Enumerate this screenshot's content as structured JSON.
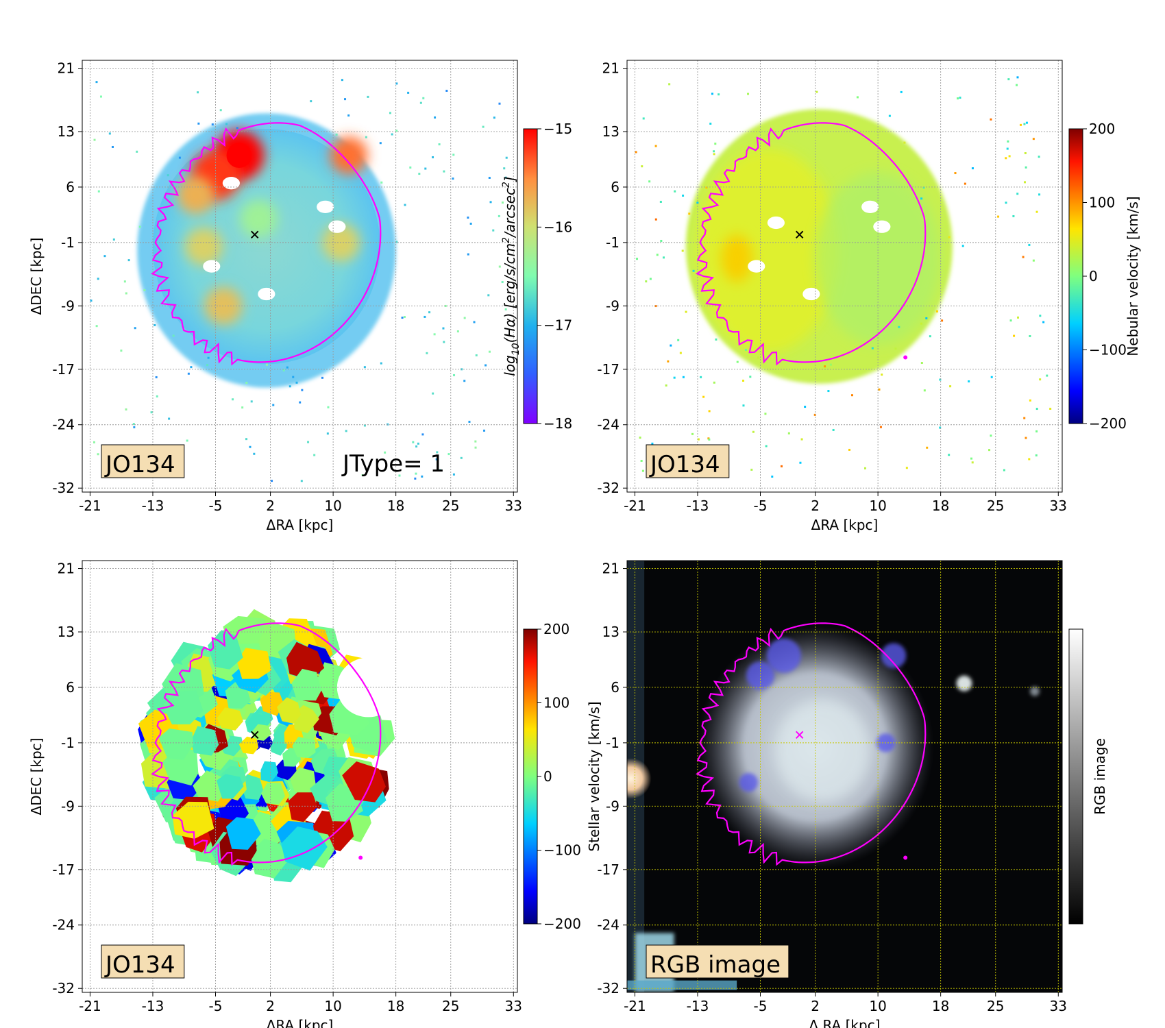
{
  "figure": {
    "palette": {
      "contour": "#ff00ff",
      "box_fill": "#f5deb3",
      "grid_light": "#999999",
      "grid_dark": "#c8c800",
      "rgb_bg": "#050608"
    }
  },
  "chart_data": [
    {
      "id": "p1",
      "type": "heatmap",
      "quantity": "H-alpha surface brightness map",
      "xlabel": "ΔRA [kpc]",
      "ylabel": "ΔDEC [kpc]",
      "xticks": [
        -21,
        -13,
        -5,
        2,
        10,
        18,
        25,
        33
      ],
      "yticks": [
        21,
        13,
        6,
        -1,
        -9,
        -17,
        -24,
        -32
      ],
      "xlim": [
        -22,
        33.5
      ],
      "ylim": [
        -32.5,
        22
      ],
      "galaxy_label": "JO134",
      "extra_label": "JType= 1",
      "center_marker": [
        0,
        0
      ],
      "colorbar": {
        "label": "log10(Hα) [erg/s/cm2/arcsec2]",
        "label_prefix": "log",
        "label_sub": "10",
        "label_main": "(Hα) [erg/s/cm",
        "label_sup1": "2",
        "label_mid": "/arcsec",
        "label_sup2": "2",
        "label_end": "]",
        "ticks": [
          -15,
          -16,
          -17,
          -18
        ],
        "tick_labels": [
          "−15",
          "−16",
          "−17",
          "−18"
        ],
        "range": [
          -18,
          -15
        ],
        "cmap": "rainbow"
      },
      "blobs": [
        {
          "x": -2,
          "y": 10,
          "v": -15.0
        },
        {
          "x": -5,
          "y": 7.5,
          "v": -15.2
        },
        {
          "x": -7.5,
          "y": 5,
          "v": -15.7
        },
        {
          "x": 12,
          "y": 10,
          "v": -15.4
        },
        {
          "x": 11,
          "y": -1,
          "v": -15.9
        },
        {
          "x": -6.5,
          "y": -1.5,
          "v": -15.9
        },
        {
          "x": -4,
          "y": -9,
          "v": -15.8
        },
        {
          "x": 0.5,
          "y": 2,
          "v": -16.3
        }
      ]
    },
    {
      "id": "p2",
      "type": "heatmap",
      "quantity": "Nebular velocity map",
      "xlabel": "ΔRA [kpc]",
      "ylabel": "",
      "xticks": [
        -21,
        -13,
        -5,
        2,
        10,
        18,
        25,
        33
      ],
      "yticks": [
        21,
        13,
        6,
        -1,
        -9,
        -17,
        -24,
        -32
      ],
      "xlim": [
        -22,
        33.5
      ],
      "ylim": [
        -32.5,
        22
      ],
      "galaxy_label": "JO134",
      "center_marker": [
        0,
        0
      ],
      "colorbar": {
        "label": "Nebular velocity [km/s]",
        "ticks": [
          200,
          100,
          0,
          -100,
          -200
        ],
        "tick_labels": [
          "200",
          "100",
          "0",
          "−100",
          "−200"
        ],
        "range": [
          -200,
          200
        ],
        "cmap": "jet"
      }
    },
    {
      "id": "p3",
      "type": "heatmap",
      "quantity": "Stellar velocity map (Voronoi bins)",
      "xlabel": "ΔRA [kpc]",
      "ylabel": "ΔDEC [kpc]",
      "xticks": [
        -21,
        -13,
        -5,
        2,
        10,
        18,
        25,
        33
      ],
      "yticks": [
        21,
        13,
        6,
        -1,
        -9,
        -17,
        -24,
        -32
      ],
      "xlim": [
        -22,
        33.5
      ],
      "ylim": [
        -32.5,
        22
      ],
      "galaxy_label": "JO134",
      "center_marker": [
        0,
        0
      ],
      "colorbar": {
        "label": "Stellar velocity [km/s]",
        "ticks": [
          200,
          100,
          0,
          -100,
          -200
        ],
        "tick_labels": [
          "200",
          "100",
          "0",
          "−100",
          "−200"
        ],
        "range": [
          -200,
          200
        ],
        "cmap": "jet"
      }
    },
    {
      "id": "p4",
      "type": "heatmap",
      "quantity": "RGB image",
      "xlabel": "Δ RA [kpc]",
      "ylabel": "",
      "xticks": [
        -21,
        -13,
        -5,
        2,
        10,
        18,
        25,
        33
      ],
      "yticks": [
        21,
        13,
        6,
        -1,
        -9,
        -17,
        -24,
        -32
      ],
      "xlim": [
        -22,
        33.5
      ],
      "ylim": [
        -32.5,
        22
      ],
      "galaxy_label": "RGB image",
      "center_marker": [
        0,
        0
      ],
      "colorbar": {
        "label": "RGB image",
        "ticks": [],
        "tick_labels": [],
        "cmap": "gray"
      }
    }
  ]
}
